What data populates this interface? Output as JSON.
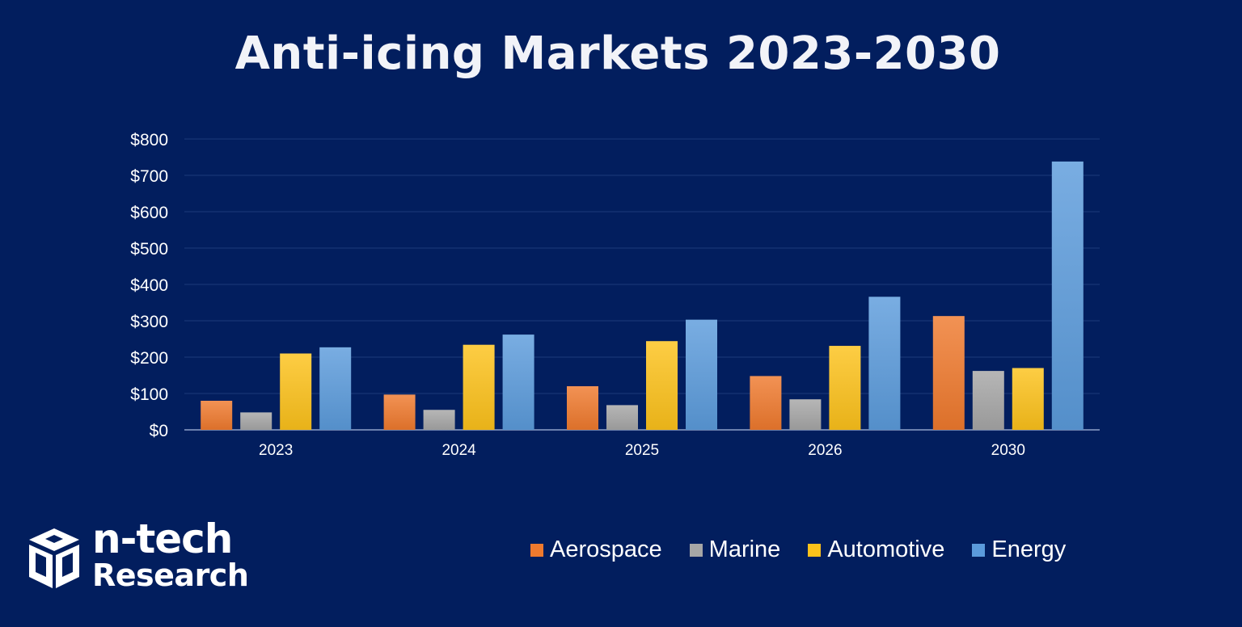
{
  "title": "Anti-icing Markets 2023-2030",
  "colors": {
    "background": "#021e5e",
    "gridline": "#1c3a7a",
    "axis": "#8ea0c8",
    "text": "#ffffff",
    "aerospace": "#ef7a2e",
    "marine": "#a6a6a6",
    "automotive": "#fcc21b",
    "energy": "#5b9bdc"
  },
  "legend": {
    "items": [
      {
        "label": "Aerospace",
        "color": "#ef7a2e"
      },
      {
        "label": "Marine",
        "color": "#a6a6a6"
      },
      {
        "label": "Automotive",
        "color": "#fcc21b"
      },
      {
        "label": "Energy",
        "color": "#5b9bdc"
      }
    ]
  },
  "logo": {
    "line1": "n-tech",
    "line2": "Research"
  },
  "chart_data": {
    "type": "bar",
    "title": "Anti-icing Markets 2023-2030",
    "xlabel": "",
    "ylabel": "",
    "categories": [
      "2023",
      "2024",
      "2025",
      "2026",
      "2030"
    ],
    "ylim": [
      0,
      800
    ],
    "yticks": [
      0,
      100,
      200,
      300,
      400,
      500,
      600,
      700,
      800
    ],
    "ytick_labels": [
      "$0",
      "$100",
      "$200",
      "$300",
      "$400",
      "$500",
      "$600",
      "$700",
      "$800"
    ],
    "grid": true,
    "legend_position": "bottom-right",
    "series": [
      {
        "name": "Aerospace",
        "values": [
          80,
          97,
          120,
          148,
          313
        ]
      },
      {
        "name": "Marine",
        "values": [
          48,
          55,
          68,
          84,
          162
        ]
      },
      {
        "name": "Automotive",
        "values": [
          210,
          234,
          244,
          231,
          170
        ]
      },
      {
        "name": "Energy",
        "values": [
          227,
          262,
          303,
          366,
          738
        ]
      }
    ]
  }
}
